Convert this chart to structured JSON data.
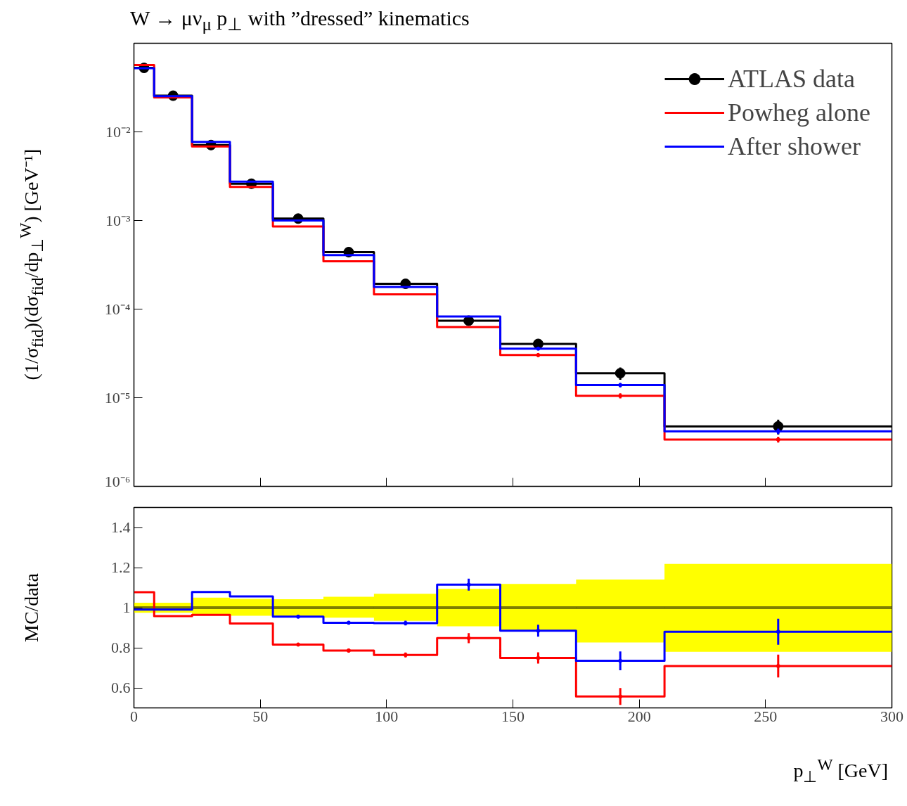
{
  "chart_data": [
    {
      "type": "step",
      "title": "W → μν$_{μ}$ p$_{⊥}$ with ”dressed” kinematics",
      "ylabel": "(1/σ$_{fid}$)(dσ$_{fid}$/dp$_{⊥}$$^{W}$) [GeV⁻¹]",
      "x": [
        0,
        8,
        23,
        38,
        55,
        75,
        95,
        120,
        145,
        175,
        210,
        300
      ],
      "series": [
        {
          "color": "#000000",
          "values": [
            0.0527,
            0.0256,
            0.0071,
            0.0026,
            0.00105,
            0.00044,
            0.000193,
            7.4e-05,
            4.05e-05,
            1.89e-05,
            4.75e-06,
            4.75e-06
          ]
        },
        {
          "name": "ATLAS data",
          "type": "scatter",
          "marker": "circle",
          "color": "#000000",
          "x": [
            4,
            15.5,
            30.5,
            46.5,
            65,
            85,
            107.5,
            132.5,
            160,
            192.5,
            255
          ],
          "values": [
            0.0527,
            0.0256,
            0.0071,
            0.0026,
            0.00105,
            0.00044,
            0.000193,
            7.4e-05,
            4.05e-05,
            1.89e-05,
            4.75e-06
          ],
          "errors": [
            null,
            null,
            null,
            null,
            null,
            null,
            null,
            null,
            2e-06,
            3e-06,
            9e-07
          ]
        },
        {
          "name": "Powheg alone",
          "color": "#ff0000",
          "values": [
            0.0567,
            0.0245,
            0.00684,
            0.00239,
            0.000857,
            0.000346,
            0.000147,
            6.28e-05,
            3.03e-05,
            1.05e-05,
            3.37e-06,
            3.37e-06
          ]
        },
        {
          "type": "scatter",
          "marker": "circle",
          "color": "#ff0000",
          "x": [
            160,
            192.5,
            255
          ],
          "values": [
            3.03e-05,
            1.05e-05,
            3.37e-06
          ],
          "errors": [
            1.5e-06,
            7e-07,
            2.5e-07
          ]
        },
        {
          "name": "After shower",
          "color": "#0000ff",
          "values": [
            0.0522,
            0.0253,
            0.0077,
            0.00275,
            0.001,
            0.000407,
            0.000178,
            8.25e-05,
            3.58e-05,
            1.39e-05,
            4.18e-06,
            4.18e-06
          ]
        },
        {
          "type": "scatter",
          "marker": "circle",
          "color": "#0000ff",
          "x": [
            160,
            192.5,
            255
          ],
          "values": [
            3.58e-05,
            1.39e-05,
            4.18e-06
          ],
          "errors": [
            1.5e-06,
            8e-07,
            3e-07
          ]
        }
      ],
      "log": "y",
      "ylim": [
        1e-06,
        0.1
      ],
      "yticks": [
        {
          "value": 1e-06,
          "label": "10⁻⁶"
        },
        {
          "value": 1e-05,
          "label": "10⁻⁵"
        },
        {
          "value": 0.0001,
          "label": "10⁻⁴"
        },
        {
          "value": 0.001,
          "label": "10⁻³"
        },
        {
          "value": 0.01,
          "label": "10⁻²"
        }
      ],
      "xlim": [
        0,
        300
      ],
      "xticks": [
        0,
        50,
        100,
        150,
        200,
        250,
        300
      ],
      "tick_labels": "y",
      "legend": "top right",
      "grid": false
    },
    {
      "type": "step",
      "ylabel": "MC/data",
      "xlabel": "p$_{⊥}$$^{W}$ [GeV]",
      "x": [
        0,
        8,
        23,
        38,
        55,
        75,
        95,
        120,
        145,
        175,
        210,
        300
      ],
      "series": [
        {
          "color": "#ffff00",
          "values": [
            1,
            1,
            1,
            1,
            1,
            1,
            1,
            1,
            1,
            1,
            1,
            1
          ],
          "lower": [
            0.975,
            0.975,
            0.965,
            0.96,
            0.958,
            0.95,
            0.934,
            0.907,
            0.882,
            0.826,
            0.78,
            0.78
          ],
          "upper": [
            1.025,
            1.025,
            1.05,
            1.044,
            1.042,
            1.054,
            1.069,
            1.094,
            1.118,
            1.14,
            1.218,
            1.218
          ]
        },
        {
          "color": "#ff0000",
          "values": [
            1.077,
            0.958,
            0.964,
            0.921,
            0.816,
            0.786,
            0.764,
            0.848,
            0.749,
            0.557,
            0.709,
            0.709
          ]
        },
        {
          "type": "scatter",
          "marker": "circle",
          "color": "#ff0000",
          "x": [
            65,
            85,
            107.5,
            132.5,
            160,
            192.5,
            255
          ],
          "values": [
            0.816,
            0.786,
            0.764,
            0.848,
            0.749,
            0.557,
            0.709
          ],
          "errors": [
            0.005,
            0.01,
            0.012,
            0.025,
            0.028,
            0.042,
            0.057
          ]
        },
        {
          "color": "#0000ff",
          "values": [
            0.99,
            0.99,
            1.078,
            1.056,
            0.955,
            0.925,
            0.923,
            1.115,
            0.885,
            0.735,
            0.88,
            0.88
          ]
        },
        {
          "type": "scatter",
          "marker": "circle",
          "color": "#0000ff",
          "x": [
            65,
            85,
            107.5,
            132.5,
            160,
            192.5,
            255
          ],
          "values": [
            0.955,
            0.925,
            0.923,
            1.115,
            0.885,
            0.735,
            0.88
          ],
          "errors": [
            0.007,
            0.008,
            0.012,
            0.03,
            0.03,
            0.047,
            0.065
          ]
        }
      ],
      "ref_lines": [
        {
          "axis": "y",
          "value": 1,
          "color": "#000000"
        }
      ],
      "ylim": [
        0.5,
        1.5
      ],
      "yticks": [
        0.6,
        0.8,
        1,
        1.2,
        1.4
      ],
      "xlim": [
        0,
        300
      ],
      "xticks": [
        0,
        50,
        100,
        150,
        200,
        250,
        300
      ],
      "grid": false
    }
  ]
}
